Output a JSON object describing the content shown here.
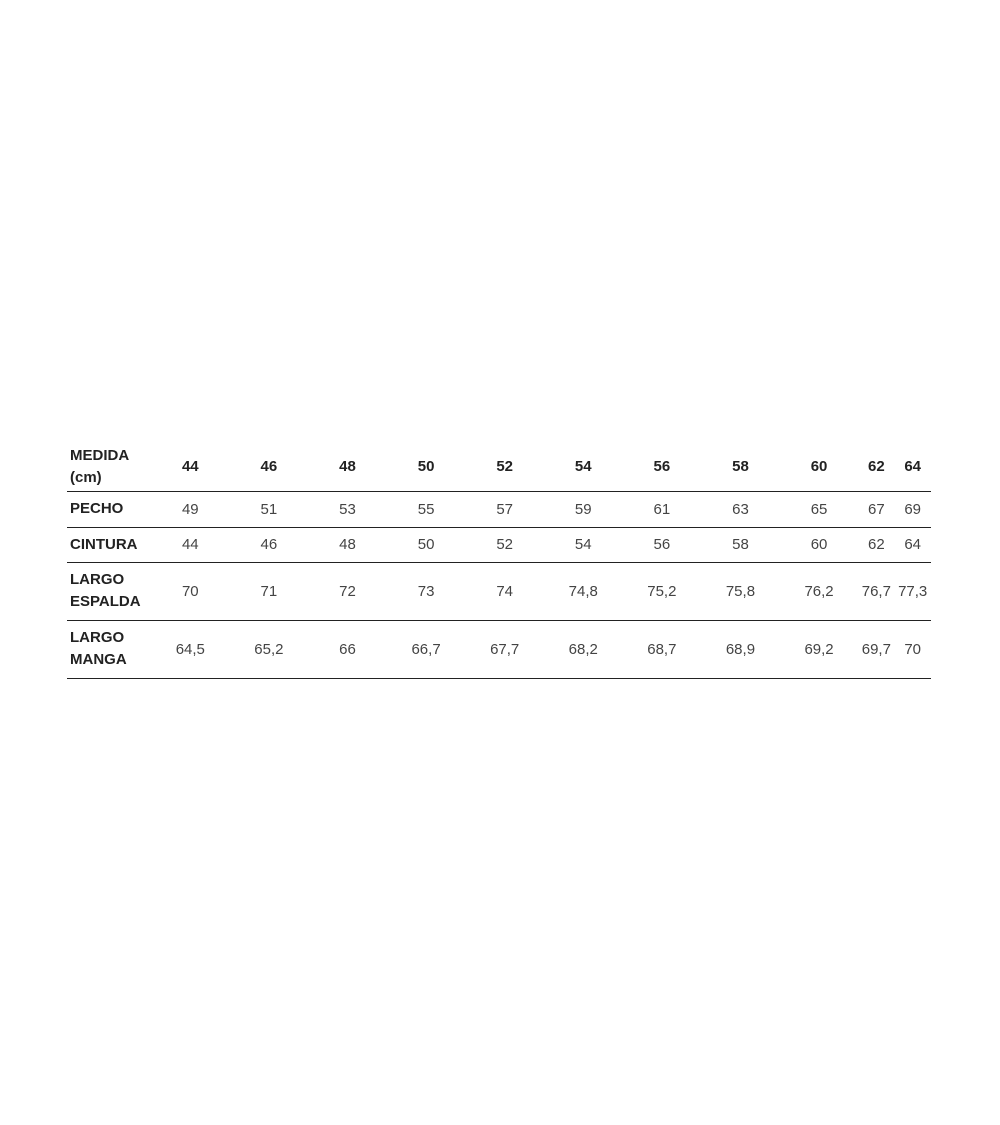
{
  "size_table": {
    "header_label": [
      "MEDIDA",
      "(cm)"
    ],
    "sizes": [
      "44",
      "46",
      "48",
      "50",
      "52",
      "54",
      "56",
      "58",
      "60",
      "62",
      "64"
    ],
    "rows": [
      {
        "label": [
          "PECHO"
        ],
        "values": [
          "49",
          "51",
          "53",
          "55",
          "57",
          "59",
          "61",
          "63",
          "65",
          "67",
          "69"
        ]
      },
      {
        "label": [
          "CINTURA"
        ],
        "values": [
          "44",
          "46",
          "48",
          "50",
          "52",
          "54",
          "56",
          "58",
          "60",
          "62",
          "64"
        ]
      },
      {
        "label": [
          "LARGO",
          "ESPALDA"
        ],
        "values": [
          "70",
          "71",
          "72",
          "73",
          "74",
          "74,8",
          "75,2",
          "75,8",
          "76,2",
          "76,7",
          "77,3"
        ]
      },
      {
        "label": [
          "LARGO",
          "MANGA"
        ],
        "values": [
          "64,5",
          "65,2",
          "66",
          "66,7",
          "67,7",
          "68,2",
          "68,7",
          "68,9",
          "69,2",
          "69,7",
          "70"
        ]
      }
    ]
  }
}
